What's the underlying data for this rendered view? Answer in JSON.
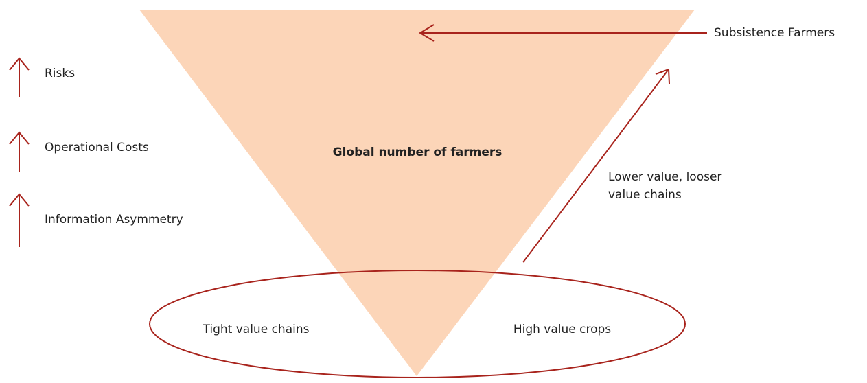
{
  "center_label": "Global number of farmers",
  "left_indicators": [
    "Risks",
    "Operational Costs",
    "Information Asymmetry"
  ],
  "top_label": "Subsistence Farmers",
  "diagonal_label": [
    "Lower value, looser",
    "value chains"
  ],
  "ellipse_labels": [
    "Tight value chains",
    "High value crops"
  ]
}
